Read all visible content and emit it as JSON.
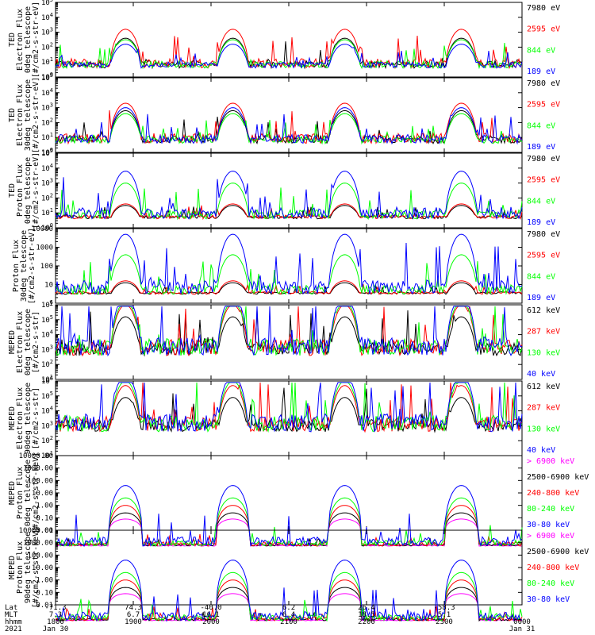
{
  "colors": {
    "black": "#000000",
    "red": "#ff0000",
    "green": "#00ff00",
    "blue": "#0000ff",
    "magenta": "#ff00ff"
  },
  "chart_data": [
    {
      "type": "line",
      "ylabel": [
        "TED",
        "Electron Flux",
        "0deg telescope",
        "[#/cm2-s-str-eV]"
      ],
      "log": true,
      "tick_labels": [
        "10^0",
        "10^1",
        "10^2",
        "10^3",
        "10^4",
        "10^5"
      ],
      "ylim": [
        1,
        100000
      ],
      "series": [
        {
          "name": "7980 eV",
          "color": "#000000",
          "peak": 2.0
        },
        {
          "name": "2595 eV",
          "color": "#ff0000",
          "peak": 2.6
        },
        {
          "name": "844 eV",
          "color": "#00ff00",
          "peak": 1.9
        },
        {
          "name": "189 eV",
          "color": "#0000ff",
          "peak": 1.6
        }
      ]
    },
    {
      "type": "line",
      "ylabel": [
        "TED",
        "Electron Flux",
        "30deg telescope",
        "[#/cm2-s-str-eV]"
      ],
      "log": true,
      "tick_labels": [
        "10^0",
        "10^1",
        "10^2",
        "10^3",
        "10^4",
        "10^5"
      ],
      "ylim": [
        1,
        100000
      ],
      "series": [
        {
          "name": "7980 eV",
          "color": "#000000",
          "peak": 2.2
        },
        {
          "name": "2595 eV",
          "color": "#ff0000",
          "peak": 2.7
        },
        {
          "name": "844 eV",
          "color": "#00ff00",
          "peak": 2.0
        },
        {
          "name": "189 eV",
          "color": "#0000ff",
          "peak": 2.4
        }
      ]
    },
    {
      "type": "line",
      "ylabel": [
        "TED",
        "Proton Flux",
        "0deg telescope",
        "[#/cm2-s-str-eV]"
      ],
      "log": true,
      "tick_labels": [
        "10^0",
        "10^1",
        "10^2",
        "10^3",
        "10^4",
        "10^5"
      ],
      "ylim": [
        1,
        100000
      ],
      "series": [
        {
          "name": "7980 eV",
          "color": "#000000",
          "peak": 0.9
        },
        {
          "name": "2595 eV",
          "color": "#ff0000",
          "peak": 1.0
        },
        {
          "name": "844 eV",
          "color": "#00ff00",
          "peak": 2.4
        },
        {
          "name": "189 eV",
          "color": "#0000ff",
          "peak": 3.2
        }
      ]
    },
    {
      "type": "line",
      "ylabel": [
        "Proton Flux",
        "30deg telescope",
        "[#/cm2-s-str-eV]"
      ],
      "log": true,
      "tick_labels": [
        "1",
        "10",
        "100",
        "1000",
        "10000"
      ],
      "ylim": [
        1,
        10000
      ],
      "series": [
        {
          "name": "7980 eV",
          "color": "#000000",
          "peak": 0.5
        },
        {
          "name": "2595 eV",
          "color": "#ff0000",
          "peak": 0.6
        },
        {
          "name": "844 eV",
          "color": "#00ff00",
          "peak": 2.0
        },
        {
          "name": "189 eV",
          "color": "#0000ff",
          "peak": 3.1
        }
      ]
    },
    {
      "type": "line",
      "ylabel": [
        "MEPED",
        "Electron Flux",
        "0deg telescope",
        "[#/cm2-s-str]"
      ],
      "log": true,
      "tick_labels": [
        "10^1",
        "10^2",
        "10^3",
        "10^4",
        "10^5",
        "10^6"
      ],
      "ylim": [
        10,
        1000000
      ],
      "series": [
        {
          "name": "612 keV",
          "color": "#000000",
          "peak": 3.6
        },
        {
          "name": "287 keV",
          "color": "#ff0000",
          "peak": 4.4
        },
        {
          "name": "130 keV",
          "color": "#00ff00",
          "peak": 4.6
        },
        {
          "name": "40 keV",
          "color": "#0000ff",
          "peak": 5.0
        }
      ]
    },
    {
      "type": "line",
      "ylabel": [
        "MEPED",
        "Electron Flux",
        "90deg telescope",
        "[#/cm2-s-str]"
      ],
      "log": true,
      "tick_labels": [
        "10^1",
        "10^2",
        "10^3",
        "10^4",
        "10^5",
        "10^6"
      ],
      "ylim": [
        10,
        1000000
      ],
      "series": [
        {
          "name": "612 keV",
          "color": "#000000",
          "peak": 3.3
        },
        {
          "name": "287 keV",
          "color": "#ff0000",
          "peak": 4.1
        },
        {
          "name": "130 keV",
          "color": "#00ff00",
          "peak": 4.4
        },
        {
          "name": "40 keV",
          "color": "#0000ff",
          "peak": 4.8
        }
      ]
    },
    {
      "type": "line",
      "ylabel": [
        "MEPED",
        "Proton Flux",
        "0deg telescope",
        "[#/cm2-s-str-keV]"
      ],
      "log": true,
      "tick_labels": [
        "0.01",
        "0.10",
        "1.00",
        "10.00",
        "100.00",
        "1000.00",
        "10000.00"
      ],
      "ylim": [
        0.01,
        10000
      ],
      "series": [
        {
          "name": "> 6900 keV",
          "color": "#ff00ff",
          "peak": 0.3
        },
        {
          "name": "2500-6900 keV",
          "color": "#000000",
          "peak": 0.8
        },
        {
          "name": "240-800 keV",
          "color": "#ff0000",
          "peak": 1.4
        },
        {
          "name": "80-240 keV",
          "color": "#00ff00",
          "peak": 2.0
        },
        {
          "name": "30-80 keV",
          "color": "#0000ff",
          "peak": 3.0
        }
      ]
    },
    {
      "type": "line",
      "ylabel": [
        "MEPED",
        "Proton Flux",
        "90deg telescope",
        "[#/cm2-s-str-keV]"
      ],
      "log": true,
      "tick_labels": [
        "0.01",
        "0.10",
        "1.00",
        "10.00",
        "100.00",
        "1000.00",
        "10000.00"
      ],
      "ylim": [
        0.01,
        10000
      ],
      "series": [
        {
          "name": "> 6900 keV",
          "color": "#ff00ff",
          "peak": 0.3
        },
        {
          "name": "2500-6900 keV",
          "color": "#000000",
          "peak": 0.8
        },
        {
          "name": "240-800 keV",
          "color": "#ff0000",
          "peak": 1.4
        },
        {
          "name": "80-240 keV",
          "color": "#00ff00",
          "peak": 2.0
        },
        {
          "name": "30-80 keV",
          "color": "#0000ff",
          "peak": 3.0
        }
      ]
    }
  ],
  "time_axis": {
    "row_labels": [
      "Lat",
      "MLT",
      "hhmm",
      "2021"
    ],
    "times": [
      "1800",
      "1900",
      "2000",
      "2100",
      "2200",
      "2300",
      "0000"
    ],
    "lat": [
      "-71.3",
      "74.3",
      "-40.0",
      "6.2",
      "26.4",
      "-58.3",
      ""
    ],
    "mlt": [
      "7.3",
      "6.7",
      "16.1",
      "6.4",
      "18.5",
      "5.1",
      ""
    ],
    "dates": [
      "Jan 30",
      "",
      "",
      "",
      "",
      "",
      "Jan 31"
    ],
    "passes": [
      0.15,
      0.38,
      0.62,
      0.87
    ]
  }
}
